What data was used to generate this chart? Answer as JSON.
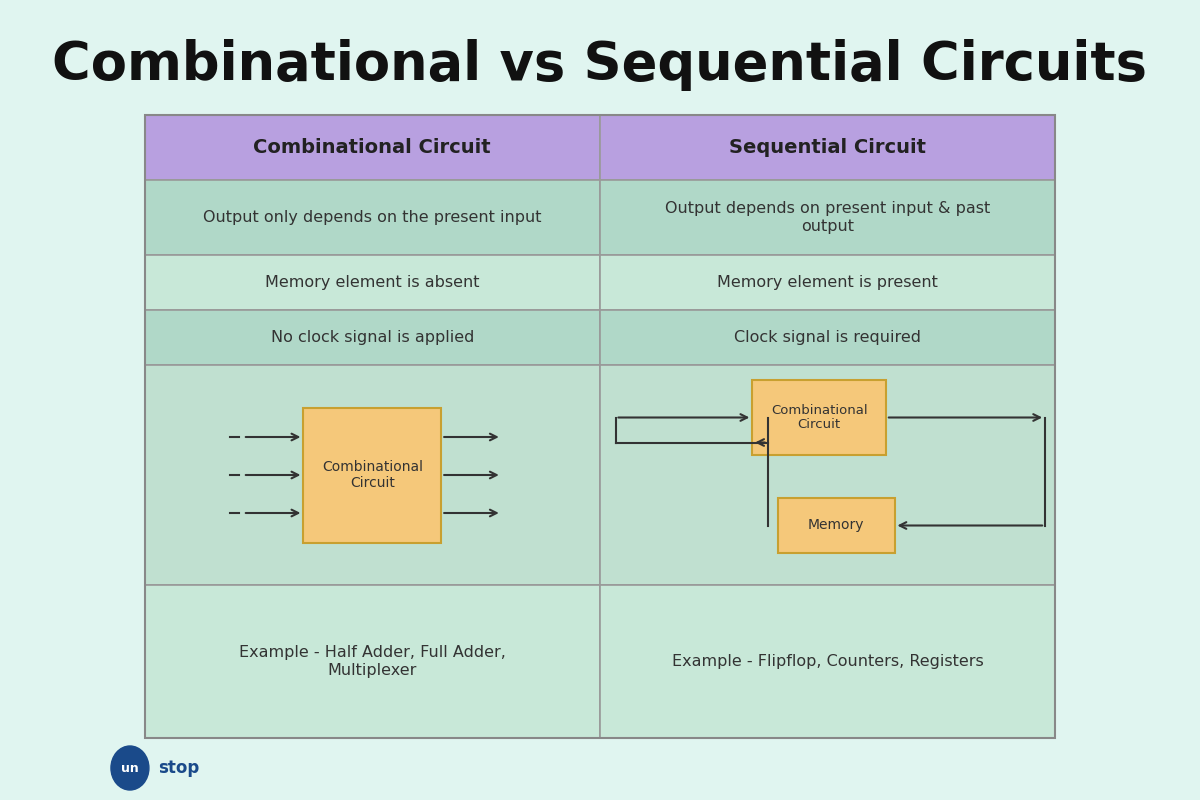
{
  "title": "Combinational vs Sequential Circuits",
  "bg_color": "#e0f5f0",
  "table_border_color": "#aaaaaa",
  "header_bg_color": "#b8a0e0",
  "row_bg_even": "#b0d8c8",
  "row_bg_odd": "#c8e8d8",
  "diagram_bg": "#c0e0d0",
  "box_color": "#f5c87a",
  "box_border": "#c8a030",
  "text_color": "#333333",
  "header_text_color": "#222222",
  "col1_header": "Combinational Circuit",
  "col2_header": "Sequential Circuit",
  "rows": [
    [
      "Output only depends on the present input",
      "Output depends on present input & past\noutput"
    ],
    [
      "Memory element is absent",
      "Memory element is present"
    ],
    [
      "No clock signal is applied",
      "Clock signal is required"
    ]
  ],
  "example1": "Example - Half Adder, Full Adder,\nMultiplexer",
  "example2": "Example - Flipflop, Counters, Registers",
  "unstop_circle_color": "#1a4a8a",
  "unstop_text_color": "#ffffff",
  "unstop_outer_text_color": "#1a4a8a"
}
